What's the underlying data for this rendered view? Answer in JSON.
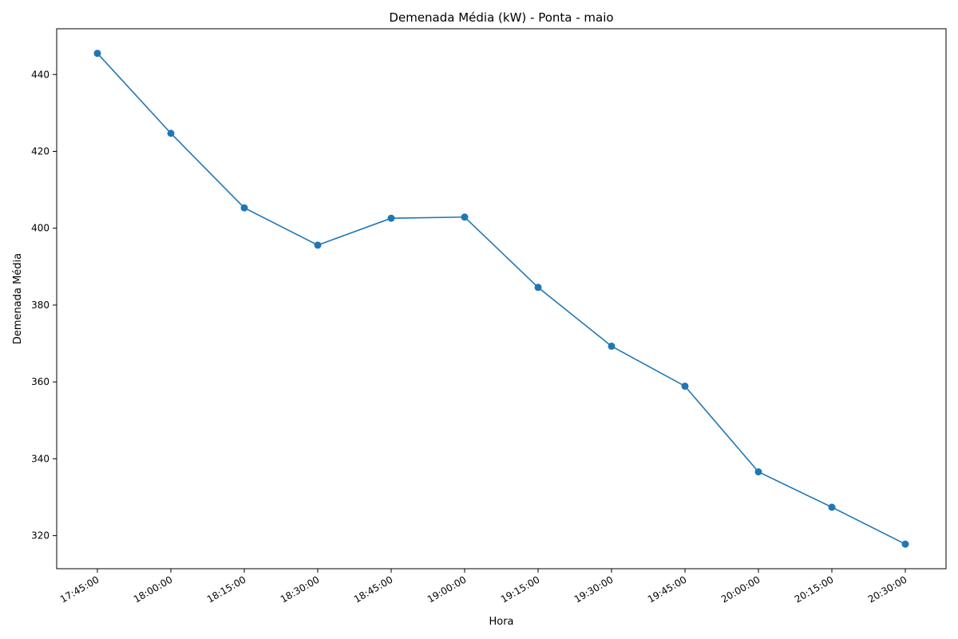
{
  "chart_data": {
    "type": "line",
    "title": "Demenada Média (kW) - Ponta - maio",
    "xlabel": "Hora",
    "ylabel": "Demenada Média",
    "categories": [
      "17:45:00",
      "18:00:00",
      "18:15:00",
      "18:30:00",
      "18:45:00",
      "19:00:00",
      "19:15:00",
      "19:30:00",
      "19:45:00",
      "20:00:00",
      "20:15:00",
      "20:30:00"
    ],
    "series": [
      {
        "values": [
          445.5,
          424.7,
          405.3,
          395.6,
          402.6,
          402.9,
          384.6,
          369.3,
          358.9,
          336.6,
          327.4,
          317.8
        ],
        "color": "#1f77b4",
        "marker": "circle"
      }
    ],
    "yticks": [
      320,
      340,
      360,
      380,
      400,
      420,
      440
    ],
    "ylim": [
      311.4,
      451.9
    ],
    "grid": false,
    "legend": false
  }
}
